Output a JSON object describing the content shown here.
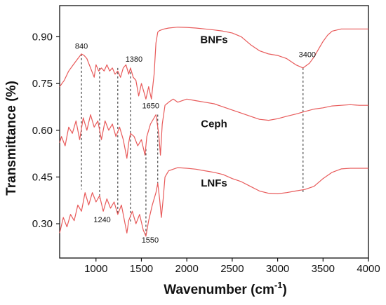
{
  "chart_data": {
    "type": "line",
    "title": "",
    "xlabel": "Wavenumber (cm",
    "xlabel_sup": "-1",
    "xlabel_tail": ")",
    "ylabel": "Transmittance (%)",
    "xlim": [
      600,
      4000
    ],
    "ylim": [
      0.19,
      1.0
    ],
    "xticks": [
      1000,
      1500,
      2000,
      2500,
      3000,
      3500,
      4000
    ],
    "yticks": [
      0.3,
      0.45,
      0.6,
      0.75,
      0.9
    ],
    "ytick_labels": [
      "0.30",
      "0.45",
      "0.60",
      "0.75",
      "0.90"
    ],
    "grid": false,
    "line_color": "#e85a5a",
    "series": [
      {
        "name": "BNFs",
        "x": [
          600,
          650,
          700,
          750,
          800,
          840,
          870,
          900,
          940,
          980,
          1000,
          1030,
          1060,
          1090,
          1120,
          1150,
          1180,
          1210,
          1240,
          1270,
          1300,
          1330,
          1360,
          1380,
          1410,
          1440,
          1470,
          1500,
          1530,
          1550,
          1580,
          1610,
          1640,
          1660,
          1680,
          1700,
          1750,
          1800,
          1900,
          2000,
          2100,
          2200,
          2300,
          2400,
          2500,
          2600,
          2700,
          2800,
          2900,
          3000,
          3100,
          3200,
          3280,
          3350,
          3400,
          3450,
          3500,
          3550,
          3600,
          3700,
          3800,
          3900,
          4000
        ],
        "y": [
          0.74,
          0.76,
          0.79,
          0.81,
          0.83,
          0.845,
          0.84,
          0.83,
          0.8,
          0.77,
          0.81,
          0.79,
          0.8,
          0.79,
          0.81,
          0.79,
          0.8,
          0.78,
          0.79,
          0.77,
          0.8,
          0.81,
          0.78,
          0.8,
          0.77,
          0.76,
          0.71,
          0.75,
          0.72,
          0.7,
          0.74,
          0.7,
          0.78,
          0.88,
          0.915,
          0.92,
          0.925,
          0.928,
          0.931,
          0.93,
          0.928,
          0.925,
          0.922,
          0.918,
          0.912,
          0.9,
          0.875,
          0.855,
          0.845,
          0.84,
          0.83,
          0.81,
          0.8,
          0.815,
          0.835,
          0.86,
          0.885,
          0.905,
          0.918,
          0.925,
          0.925,
          0.925,
          0.925
        ]
      },
      {
        "name": "Ceph",
        "x": [
          600,
          620,
          660,
          700,
          740,
          780,
          820,
          860,
          900,
          940,
          980,
          1020,
          1060,
          1100,
          1140,
          1180,
          1220,
          1260,
          1300,
          1340,
          1360,
          1380,
          1420,
          1460,
          1500,
          1540,
          1560,
          1600,
          1640,
          1660,
          1690,
          1710,
          1730,
          1760,
          1800,
          1850,
          1900,
          2000,
          2100,
          2200,
          2300,
          2400,
          2500,
          2600,
          2700,
          2800,
          2900,
          3000,
          3100,
          3200,
          3300,
          3400,
          3500,
          3600,
          3700,
          3800,
          3900,
          4000
        ],
        "y": [
          0.56,
          0.58,
          0.55,
          0.61,
          0.59,
          0.63,
          0.57,
          0.64,
          0.6,
          0.65,
          0.61,
          0.63,
          0.57,
          0.63,
          0.6,
          0.62,
          0.58,
          0.61,
          0.57,
          0.51,
          0.56,
          0.59,
          0.58,
          0.55,
          0.57,
          0.52,
          0.58,
          0.62,
          0.64,
          0.65,
          0.59,
          0.52,
          0.62,
          0.68,
          0.69,
          0.7,
          0.69,
          0.7,
          0.695,
          0.69,
          0.685,
          0.675,
          0.665,
          0.655,
          0.645,
          0.635,
          0.632,
          0.637,
          0.645,
          0.652,
          0.66,
          0.668,
          0.672,
          0.678,
          0.68,
          0.682,
          0.68,
          0.68
        ]
      },
      {
        "name": "LNFs",
        "x": [
          600,
          640,
          680,
          720,
          760,
          800,
          840,
          880,
          920,
          960,
          1000,
          1040,
          1080,
          1120,
          1160,
          1200,
          1240,
          1280,
          1320,
          1340,
          1360,
          1400,
          1440,
          1480,
          1520,
          1550,
          1580,
          1620,
          1660,
          1680,
          1700,
          1720,
          1740,
          1760,
          1800,
          1900,
          2000,
          2100,
          2200,
          2300,
          2400,
          2500,
          2600,
          2700,
          2800,
          2900,
          3000,
          3100,
          3200,
          3300,
          3400,
          3500,
          3600,
          3700,
          3800,
          3900,
          4000
        ],
        "y": [
          0.27,
          0.32,
          0.29,
          0.33,
          0.31,
          0.36,
          0.34,
          0.4,
          0.36,
          0.4,
          0.37,
          0.39,
          0.34,
          0.38,
          0.35,
          0.37,
          0.33,
          0.36,
          0.3,
          0.27,
          0.31,
          0.34,
          0.3,
          0.33,
          0.28,
          0.26,
          0.31,
          0.36,
          0.4,
          0.43,
          0.38,
          0.32,
          0.38,
          0.45,
          0.47,
          0.48,
          0.478,
          0.475,
          0.47,
          0.465,
          0.458,
          0.445,
          0.435,
          0.42,
          0.405,
          0.398,
          0.396,
          0.4,
          0.405,
          0.41,
          0.42,
          0.445,
          0.465,
          0.476,
          0.478,
          0.478,
          0.478
        ]
      }
    ],
    "series_labels": [
      {
        "text": "BNFs",
        "x": 2300,
        "y": 0.88
      },
      {
        "text": "Ceph",
        "x": 2300,
        "y": 0.61
      },
      {
        "text": "LNFs",
        "x": 2300,
        "y": 0.42
      }
    ],
    "annotations": [
      {
        "label": "840",
        "x": 840,
        "y_top": 0.845,
        "y_bottom": 0.41,
        "label_y": 0.862,
        "anchor": "middle"
      },
      {
        "label": "",
        "x": 1040,
        "y_top": 0.8,
        "y_bottom": 0.38
      },
      {
        "label": "1240",
        "x": 1240,
        "y_top": 0.8,
        "y_bottom": 0.33,
        "label_y": 0.305,
        "anchor": "end",
        "dx": -10
      },
      {
        "label": "1380",
        "x": 1380,
        "y_top": 0.8,
        "y_bottom": 0.3,
        "label_y": 0.82,
        "anchor": "middle",
        "dx": 5
      },
      {
        "label": "1550",
        "x": 1550,
        "y_top": 0.54,
        "y_bottom": 0.26,
        "label_y": 0.24,
        "anchor": "middle",
        "dx": 6
      },
      {
        "label": "1650",
        "x": 1680,
        "y_top": 0.65,
        "y_bottom": 0.42,
        "label_y": 0.67,
        "anchor": "middle",
        "dx": -10
      },
      {
        "label": "3400",
        "x": 3280,
        "y_top": 0.8,
        "y_bottom": 0.4,
        "label_y": 0.835,
        "anchor": "middle",
        "dx": 6
      }
    ]
  }
}
